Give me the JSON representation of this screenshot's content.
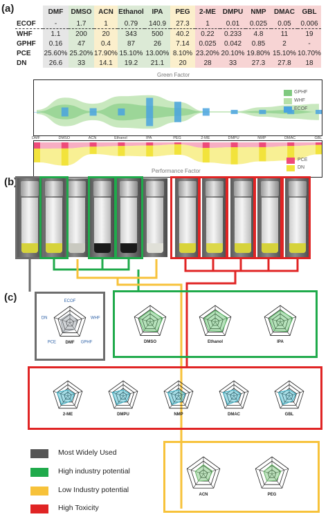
{
  "panels": {
    "a": "(a)",
    "b": "(b)",
    "c": "(c)"
  },
  "table": {
    "columns": [
      "DMF",
      "DMSO",
      "ACN",
      "Ethanol",
      "IPA",
      "PEG",
      "2-ME",
      "DMPU",
      "NMP",
      "DMAC",
      "GBL"
    ],
    "column_groups": [
      "grey",
      "green",
      "yellow",
      "green",
      "green",
      "yellow",
      "red",
      "red",
      "red",
      "red",
      "red"
    ],
    "rows": [
      {
        "label": "ECOF",
        "values": [
          "-",
          "1.7",
          "1",
          "0.79",
          "140.9",
          "27.3",
          "1",
          "0.01",
          "0.025",
          "0.05",
          "0.006"
        ]
      },
      {
        "label": "WHF",
        "values": [
          "1.1",
          "200",
          "20",
          "343",
          "500",
          "40.2",
          "0.22",
          "0.233",
          "4.8",
          "11",
          "19"
        ]
      },
      {
        "label": "GPHF",
        "values": [
          "0.16",
          "47",
          "0.4",
          "87",
          "26",
          "7.14",
          "0.025",
          "0.042",
          "0.85",
          "2",
          "-"
        ]
      },
      {
        "label": "PCE",
        "values": [
          "25.60%",
          "25.20%",
          "17.90%",
          "15.10%",
          "13.00%",
          "8.10%",
          "23.20%",
          "20.10%",
          "19.80%",
          "15.10%",
          "10.70%"
        ]
      },
      {
        "label": "DN",
        "values": [
          "26.6",
          "33",
          "14.1",
          "19.2",
          "21.1",
          "20",
          "28",
          "33",
          "27.3",
          "27.8",
          "18"
        ]
      }
    ]
  },
  "chart_data": [
    {
      "type": "area",
      "title": "Green Factor",
      "categories": [
        "DMF",
        "DMSO",
        "ACN",
        "Ethanol",
        "IPA",
        "PEG",
        "2-ME",
        "DMPU",
        "NMP",
        "DMAC",
        "GBL"
      ],
      "series": [
        {
          "name": "GPHF",
          "values": [
            0.16,
            47,
            0.4,
            87,
            26,
            7.14,
            0.025,
            0.042,
            0.85,
            2,
            0
          ]
        },
        {
          "name": "WHF",
          "values": [
            1.1,
            200,
            20,
            343,
            500,
            40.2,
            0.22,
            0.233,
            4.8,
            11,
            19
          ]
        },
        {
          "name": "ECOF",
          "values": [
            0,
            1.7,
            1,
            0.79,
            140.9,
            27.3,
            1,
            0.01,
            0.025,
            0.05,
            0.006
          ]
        }
      ],
      "colors": {
        "GPHF": "#7fc97f",
        "WHF": "#b6e0a8",
        "ECOF": "#4aa3df"
      }
    },
    {
      "type": "area",
      "title": "Performance Factor",
      "categories": [
        "DMF",
        "DMSO",
        "ACN",
        "Ethanol",
        "IPA",
        "PEG",
        "2-ME",
        "DMPU",
        "NMP",
        "DMAC",
        "GBL"
      ],
      "series": [
        {
          "name": "PCE",
          "values": [
            25.6,
            25.2,
            17.9,
            15.1,
            13.0,
            8.1,
            23.2,
            20.1,
            19.8,
            15.1,
            10.7
          ]
        },
        {
          "name": "DN",
          "values": [
            26.6,
            33,
            14.1,
            19.2,
            21.1,
            20,
            28,
            33,
            27.3,
            27.8,
            18
          ]
        }
      ],
      "colors": {
        "PCE": "#ee4b7a",
        "DN": "#f2e33c"
      }
    }
  ],
  "radars": {
    "axes": [
      "ECOF",
      "WHF",
      "GPHF",
      "PCE",
      "DN"
    ],
    "grey": [
      "DMF"
    ],
    "green": [
      "DMSO",
      "Ethanol",
      "IPA"
    ],
    "red": [
      "2-ME",
      "DMPU",
      "NMP",
      "DMAC",
      "GBL"
    ],
    "yellow": [
      "ACN",
      "PEG"
    ]
  },
  "legend": [
    {
      "label": "Most Widely Used",
      "color": "#555555"
    },
    {
      "label": "High industry potential",
      "color": "#1faa4b"
    },
    {
      "label": "Low Industry potential",
      "color": "#f7c23a"
    },
    {
      "label": "High Toxicity",
      "color": "#e02424"
    }
  ],
  "colors": {
    "grey": "#6d6d6d",
    "green": "#1faa4b",
    "yellow": "#f7c23a",
    "red": "#e02424"
  }
}
